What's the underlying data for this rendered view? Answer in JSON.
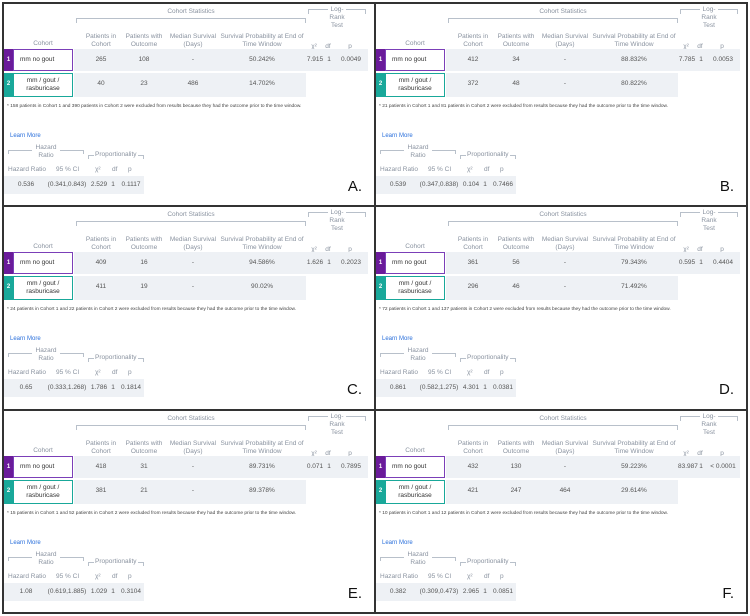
{
  "labels": {
    "cohort": "Cohort",
    "cohort_statistics": "Cohort Statistics",
    "patients_in_cohort": "Patients in Cohort",
    "patients_with_outcome": "Patients with Outcome",
    "median_survival": "Median Survival (Days)",
    "survival_probability": "Survival Probability at End of Time Window",
    "log_rank_test": "Log-Rank Test",
    "chi2": "χ²",
    "df": "df",
    "p": "p",
    "learn_more": "Learn More",
    "hazard_ratio_title": "Hazard Ratio",
    "proportionality": "Proportionality",
    "hazard_ratio": "Hazard Ratio",
    "ci": "95 % CI"
  },
  "panels": [
    {
      "letter": "A.",
      "rows": [
        {
          "num": "1",
          "name": "mm no gout",
          "patients": "265",
          "outcome": "108",
          "median": "-",
          "survival": "50.242%"
        },
        {
          "num": "2",
          "name": "mm / gout / rasburicase",
          "patients": "40",
          "outcome": "23",
          "median": "486",
          "survival": "14.702%"
        }
      ],
      "logrank": {
        "chi2": "7.915",
        "df": "1",
        "p": "0.0049"
      },
      "footnote": "* 158 patients in Cohort 1 and 390 patients in Cohort 2 were excluded from results because they had the outcome prior to the time window.",
      "hazard": {
        "hr": "0.536",
        "ci": "(0.341,0.843)",
        "chi2": "2.529",
        "df": "1",
        "p": "0.1117"
      }
    },
    {
      "letter": "B.",
      "rows": [
        {
          "num": "1",
          "name": "mm no gout",
          "patients": "412",
          "outcome": "34",
          "median": "-",
          "survival": "88.832%"
        },
        {
          "num": "2",
          "name": "mm / gout / rasburicase",
          "patients": "372",
          "outcome": "48",
          "median": "-",
          "survival": "80.822%"
        }
      ],
      "logrank": {
        "chi2": "7.785",
        "df": "1",
        "p": "0.0053"
      },
      "footnote": "* 21 patients in Cohort 1 and 81 patients in Cohort 2 were excluded from results because they had the outcome prior to the time window.",
      "hazard": {
        "hr": "0.539",
        "ci": "(0.347,0.838)",
        "chi2": "0.104",
        "df": "1",
        "p": "0.7466"
      }
    },
    {
      "letter": "C.",
      "rows": [
        {
          "num": "1",
          "name": "mm no gout",
          "patients": "409",
          "outcome": "16",
          "median": "-",
          "survival": "94.586%"
        },
        {
          "num": "2",
          "name": "mm / gout / rasburicase",
          "patients": "411",
          "outcome": "19",
          "median": "-",
          "survival": "90.02%"
        }
      ],
      "logrank": {
        "chi2": "1.626",
        "df": "1",
        "p": "0.2023"
      },
      "footnote": "* 24 patients in Cohort 1 and 22 patients in Cohort 2 were excluded from results because they had the outcome prior to the time window.",
      "hazard": {
        "hr": "0.65",
        "ci": "(0.333,1.268)",
        "chi2": "1.786",
        "df": "1",
        "p": "0.1814"
      }
    },
    {
      "letter": "D.",
      "rows": [
        {
          "num": "1",
          "name": "mm no gout",
          "patients": "361",
          "outcome": "56",
          "median": "-",
          "survival": "79.343%"
        },
        {
          "num": "2",
          "name": "mm / gout / rasburicase",
          "patients": "296",
          "outcome": "46",
          "median": "-",
          "survival": "71.492%"
        }
      ],
      "logrank": {
        "chi2": "0.595",
        "df": "1",
        "p": "0.4404"
      },
      "footnote": "* 72 patients in Cohort 1 and 137 patients in Cohort 2 were excluded from results because they had the outcome prior to the time window.",
      "hazard": {
        "hr": "0.861",
        "ci": "(0.582,1.275)",
        "chi2": "4.301",
        "df": "1",
        "p": "0.0381"
      }
    },
    {
      "letter": "E.",
      "rows": [
        {
          "num": "1",
          "name": "mm no gout",
          "patients": "418",
          "outcome": "31",
          "median": "-",
          "survival": "89.731%"
        },
        {
          "num": "2",
          "name": "mm / gout / rasburicase",
          "patients": "381",
          "outcome": "21",
          "median": "-",
          "survival": "89.378%"
        }
      ],
      "logrank": {
        "chi2": "0.071",
        "df": "1",
        "p": "0.7895"
      },
      "footnote": "* 15 patients in Cohort 1 and 52 patients in Cohort 2 were excluded from results because they had the outcome prior to the time window.",
      "hazard": {
        "hr": "1.08",
        "ci": "(0.619,1.885)",
        "chi2": "1.029",
        "df": "1",
        "p": "0.3104"
      }
    },
    {
      "letter": "F.",
      "rows": [
        {
          "num": "1",
          "name": "mm no gout",
          "patients": "432",
          "outcome": "130",
          "median": "-",
          "survival": "59.223%"
        },
        {
          "num": "2",
          "name": "mm / gout / rasburicase",
          "patients": "421",
          "outcome": "247",
          "median": "464",
          "survival": "29.614%"
        }
      ],
      "logrank": {
        "chi2": "83.987",
        "df": "1",
        "p": "< 0.0001"
      },
      "footnote": "* 10 patients in Cohort 1 and 12 patients in Cohort 2 were excluded from results because they had the outcome prior to the time window.",
      "hazard": {
        "hr": "0.382",
        "ci": "(0.309,0.473)",
        "chi2": "2.965",
        "df": "1",
        "p": "0.0851"
      }
    }
  ]
}
